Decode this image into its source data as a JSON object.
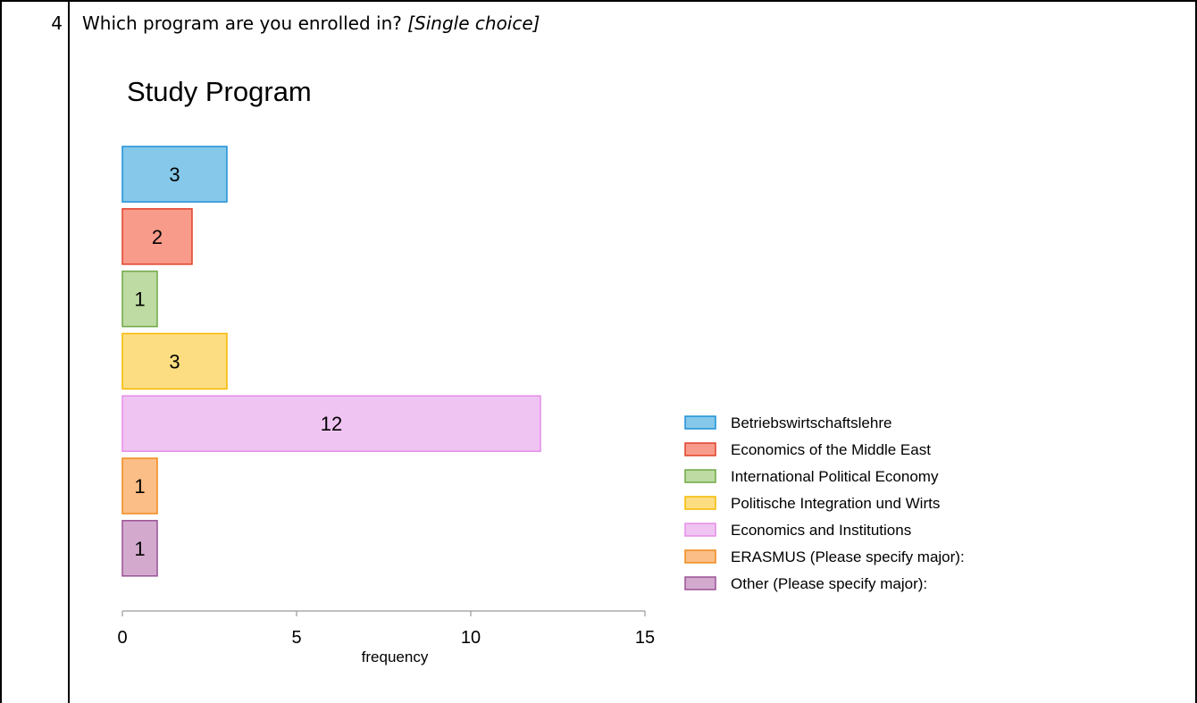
{
  "question": {
    "number": "4",
    "text": "Which program are you enrolled in?",
    "type_note": "[Single choice]"
  },
  "chart_data": {
    "type": "bar",
    "orientation": "horizontal",
    "title": "Study Program",
    "xlabel": "frequency",
    "ylabel": "",
    "xlim": [
      0,
      15
    ],
    "xticks": [
      0,
      5,
      10,
      15
    ],
    "grid": false,
    "legend_position": "right",
    "categories": [
      "Betriebswirtschaftslehre",
      "Economics of the Middle East",
      "International Political Economy",
      "Politische Integration und Wirts",
      "Economics and Institutions",
      "ERASMUS (Please specify major):",
      "Other (Please specify major):"
    ],
    "values": [
      3,
      2,
      1,
      3,
      12,
      1,
      1
    ],
    "colors": [
      {
        "fill": "#85C8EA",
        "stroke": "#1E8FD6"
      },
      {
        "fill": "#F99B8A",
        "stroke": "#E0402A"
      },
      {
        "fill": "#BDDBA2",
        "stroke": "#6FA845"
      },
      {
        "fill": "#FDDD82",
        "stroke": "#F5B800"
      },
      {
        "fill": "#F0C4F2",
        "stroke": "#E58CE8"
      },
      {
        "fill": "#FBBE87",
        "stroke": "#F08A1C"
      },
      {
        "fill": "#D3AACE",
        "stroke": "#9A5196"
      }
    ]
  }
}
